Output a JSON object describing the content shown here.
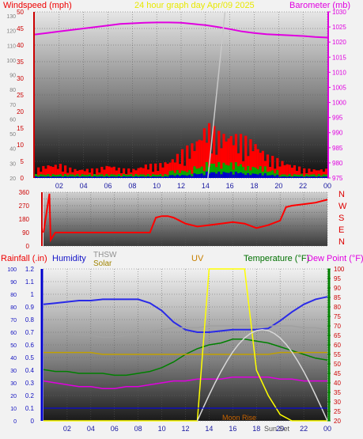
{
  "header": {
    "wind_title": "Windspeed (mph)",
    "graph_title": "24 hour graph day   Apr/09 2025",
    "baro_title": "Barometer (mb)"
  },
  "bottom_header": {
    "rain": "Rainfall (.in)",
    "humidity": "Humidity",
    "thsw": "THSW",
    "solar": "Solar",
    "uv": "UV",
    "temperature": "Temperature (°F)",
    "dewpoint": "Dew Point (°F)"
  },
  "x_ticks": [
    "02",
    "04",
    "06",
    "08",
    "10",
    "12",
    "14",
    "16",
    "18",
    "20",
    "22",
    "00"
  ],
  "compass": [
    "N",
    "W",
    "S",
    "E",
    "N"
  ],
  "annotations": {
    "moon_rise": "Moon Rise",
    "sun_set": "Sun Set"
  },
  "colors": {
    "windspeed": "#ff0000",
    "gust": "#00aa00",
    "avg": "#0000cc",
    "barometer": "#e000e0",
    "direction": "#ff0000",
    "humidity": "#2a2ae8",
    "temperature": "#008000",
    "dewpoint": "#e000e0",
    "thsw": "#a0a0a0",
    "solar": "#c0a000",
    "uv": "#ffff00",
    "rain": "#0000ff"
  },
  "chart_data": [
    {
      "type": "bar",
      "title": "24 hour graph day   Apr/09 2025",
      "ylabel": "Windspeed (mph)",
      "ylabel_right": "Barometer (mb)",
      "ylim": [
        0,
        50
      ],
      "ylim_right": [
        975,
        1030
      ],
      "y_ticks": [
        0,
        5,
        10,
        15,
        20,
        25,
        30,
        35,
        40,
        45,
        50
      ],
      "y_ticks_mph_small": [
        20,
        30,
        40,
        50,
        60,
        70,
        80,
        90,
        100,
        110,
        120,
        130
      ],
      "y_ticks_right": [
        975,
        980,
        985,
        990,
        995,
        1000,
        1005,
        1010,
        1015,
        1020,
        1025,
        1030
      ],
      "x": [
        0,
        1,
        2,
        3,
        4,
        5,
        6,
        7,
        8,
        9,
        10,
        11,
        12,
        13,
        14,
        15,
        16,
        17,
        18,
        19,
        20,
        21,
        22,
        23,
        24
      ],
      "series": [
        {
          "name": "Barometer",
          "axis": "right",
          "values": [
            1022.5,
            1023,
            1023.5,
            1024,
            1024.5,
            1025,
            1025.5,
            1026,
            1026.2,
            1026.4,
            1026.5,
            1026.5,
            1026.4,
            1026,
            1025.6,
            1025,
            1024.3,
            1023.5,
            1023,
            1022.6,
            1022.4,
            1022.2,
            1022,
            1021.7,
            1021.5
          ]
        },
        {
          "name": "Windspeed",
          "axis": "left",
          "values": [
            2,
            3,
            3,
            2,
            2,
            2,
            3,
            2,
            2,
            3,
            3,
            4,
            6,
            8,
            12,
            10,
            10,
            9,
            8,
            5,
            4,
            3,
            2,
            2,
            2
          ]
        },
        {
          "name": "Gust",
          "axis": "left",
          "values": [
            1,
            1,
            1,
            1,
            1,
            1,
            1,
            1,
            1,
            1,
            1,
            2,
            2,
            3,
            4,
            4,
            4,
            3,
            3,
            2,
            1,
            1,
            1,
            1,
            1
          ]
        }
      ]
    },
    {
      "type": "line",
      "ylabel": "Wind direction",
      "ylim": [
        0,
        360
      ],
      "y_ticks": [
        0,
        45,
        90,
        135,
        180,
        225,
        270,
        315,
        360
      ],
      "x": [
        0,
        0.5,
        0.6,
        1,
        2,
        3,
        4,
        5,
        6,
        7,
        8,
        9,
        9.5,
        10,
        10.5,
        11,
        12,
        13,
        14,
        15,
        16,
        17,
        18,
        19,
        20,
        20.5,
        21,
        22,
        23,
        24
      ],
      "series": [
        {
          "name": "Direction",
          "values": [
            90,
            350,
            40,
            90,
            90,
            90,
            90,
            90,
            90,
            90,
            90,
            90,
            190,
            200,
            200,
            190,
            150,
            130,
            140,
            150,
            160,
            150,
            120,
            140,
            170,
            260,
            270,
            280,
            290,
            310
          ]
        }
      ]
    },
    {
      "type": "line",
      "ylabel": "Rainfall (.in)",
      "ylabel_right": "Temperature (°F)",
      "ylim": [
        0,
        1.2
      ],
      "ylim_right": [
        20,
        100
      ],
      "y_ticks": [
        0,
        0.1,
        0.2,
        0.3,
        0.4,
        0.5,
        0.6,
        0.7,
        0.8,
        0.9,
        1,
        1.1,
        1.2
      ],
      "y_ticks_right": [
        20,
        25,
        30,
        35,
        40,
        45,
        50,
        55,
        60,
        65,
        70,
        75,
        80,
        85,
        90,
        95,
        100
      ],
      "x": [
        0,
        1,
        2,
        3,
        4,
        5,
        6,
        7,
        8,
        9,
        10,
        11,
        12,
        13,
        14,
        15,
        16,
        17,
        18,
        19,
        20,
        21,
        22,
        23,
        24
      ],
      "series": [
        {
          "name": "Humidity",
          "axis": "left",
          "values": [
            0.92,
            0.93,
            0.94,
            0.95,
            0.95,
            0.96,
            0.96,
            0.96,
            0.96,
            0.93,
            0.87,
            0.78,
            0.72,
            0.7,
            0.7,
            0.71,
            0.72,
            0.72,
            0.72,
            0.73,
            0.79,
            0.86,
            0.92,
            0.96,
            0.98
          ]
        },
        {
          "name": "Temperature",
          "axis": "right",
          "values": [
            47,
            46,
            46,
            45,
            45,
            45,
            44,
            44,
            45,
            46,
            48,
            51,
            55,
            58,
            60,
            61,
            63,
            63,
            62,
            61,
            59,
            57,
            55,
            53,
            52
          ]
        },
        {
          "name": "Dew Point",
          "axis": "right",
          "values": [
            41,
            40,
            39,
            38,
            38,
            37,
            37,
            38,
            38,
            39,
            40,
            41,
            41,
            42,
            42,
            42,
            43,
            43,
            43,
            43,
            42,
            42,
            41,
            41,
            41
          ]
        },
        {
          "name": "THSW",
          "axis": "right",
          "values": [
            66,
            66,
            66,
            65,
            65,
            64,
            64,
            65,
            66,
            67,
            68,
            69,
            69,
            69,
            70,
            70,
            70,
            70,
            70,
            70,
            70,
            70,
            69,
            69,
            68
          ]
        },
        {
          "name": "Solar",
          "axis": "right",
          "values": [
            56,
            56,
            56,
            56,
            56,
            55,
            55,
            55,
            55,
            55,
            55,
            55,
            55,
            55,
            55,
            55,
            55,
            55,
            55,
            55,
            56,
            56,
            56,
            56,
            56
          ]
        },
        {
          "name": "UV",
          "axis": "left",
          "values": [
            0,
            0,
            0,
            0,
            0,
            0,
            0,
            0,
            0,
            0,
            0,
            0,
            0,
            0,
            1.2,
            1.2,
            1.2,
            1.2,
            0.4,
            0.2,
            0.05,
            0,
            0,
            0,
            0
          ]
        }
      ]
    }
  ]
}
